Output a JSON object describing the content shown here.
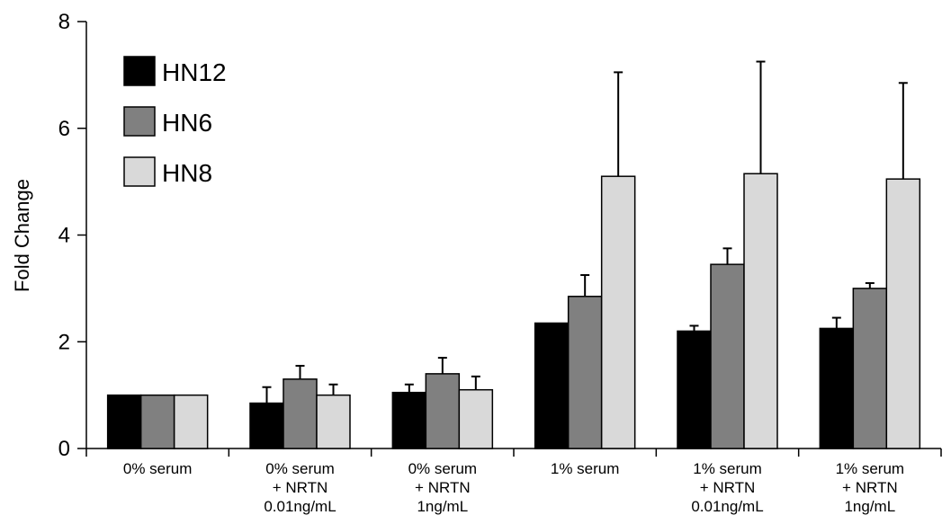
{
  "chart_data": {
    "type": "bar",
    "title": "",
    "xlabel": "",
    "ylabel": "Fold Change",
    "ylim": [
      0,
      8
    ],
    "yticks": [
      0,
      2,
      4,
      6,
      8
    ],
    "grid": false,
    "legend_position": "top-left",
    "categories": [
      [
        "0% serum"
      ],
      [
        "0% serum",
        "+ NRTN",
        "0.01ng/mL"
      ],
      [
        "0% serum",
        "+ NRTN",
        "1ng/mL"
      ],
      [
        "1% serum"
      ],
      [
        "1% serum",
        "+ NRTN",
        "0.01ng/mL"
      ],
      [
        "1% serum",
        "+ NRTN",
        "1ng/mL"
      ]
    ],
    "series": [
      {
        "name": "HN12",
        "color": "#000000",
        "values": [
          1.0,
          0.85,
          1.05,
          2.35,
          2.2,
          2.25
        ],
        "errors": [
          0,
          0.3,
          0.15,
          0,
          0.1,
          0.2
        ]
      },
      {
        "name": "HN6",
        "color": "#808080",
        "values": [
          1.0,
          1.3,
          1.4,
          2.85,
          3.45,
          3.0
        ],
        "errors": [
          0,
          0.25,
          0.3,
          0.4,
          0.3,
          0.1
        ]
      },
      {
        "name": "HN8",
        "color": "#d9d9d9",
        "values": [
          1.0,
          1.0,
          1.1,
          5.1,
          5.15,
          5.05
        ],
        "errors": [
          0,
          0.2,
          0.25,
          1.95,
          2.1,
          1.8
        ]
      }
    ]
  }
}
